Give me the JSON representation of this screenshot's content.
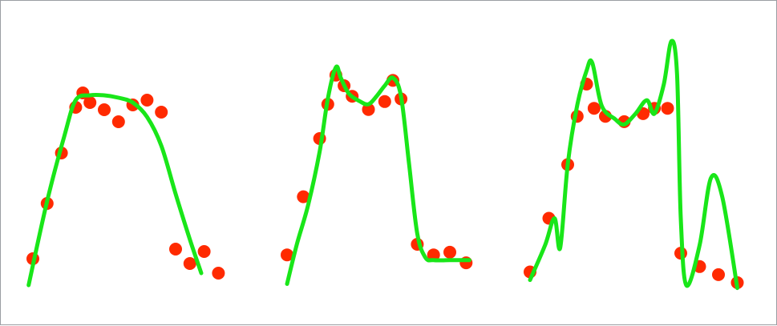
{
  "colors": {
    "points": "#ff2a00",
    "fit": "#19e619",
    "background": "#ffffff",
    "border": "#9a9ea3"
  },
  "chart_data": [
    {
      "type": "scatter",
      "panel": "underfit",
      "points": [
        [
          0,
          0.16
        ],
        [
          1,
          0.39
        ],
        [
          2,
          0.6
        ],
        [
          3,
          0.79
        ],
        [
          3.5,
          0.85
        ],
        [
          4,
          0.81
        ],
        [
          5,
          0.78
        ],
        [
          6,
          0.73
        ],
        [
          7,
          0.8
        ],
        [
          8,
          0.82
        ],
        [
          9,
          0.77
        ],
        [
          10,
          0.2
        ],
        [
          11,
          0.14
        ],
        [
          12,
          0.19
        ],
        [
          13,
          0.1
        ]
      ],
      "fit_curve": [
        [
          -0.3,
          0.05
        ],
        [
          1,
          0.4
        ],
        [
          2.2,
          0.67
        ],
        [
          3,
          0.82
        ],
        [
          4,
          0.84
        ],
        [
          5,
          0.84
        ],
        [
          6,
          0.83
        ],
        [
          7,
          0.81
        ],
        [
          8,
          0.75
        ],
        [
          9,
          0.63
        ],
        [
          10,
          0.43
        ],
        [
          11,
          0.24
        ],
        [
          11.8,
          0.1
        ]
      ]
    },
    {
      "type": "scatter",
      "panel": "good-fit",
      "points": [
        [
          0,
          0.16
        ],
        [
          1,
          0.38
        ],
        [
          2,
          0.6
        ],
        [
          2.5,
          0.73
        ],
        [
          3,
          0.84
        ],
        [
          3.5,
          0.8
        ],
        [
          4,
          0.76
        ],
        [
          5,
          0.71
        ],
        [
          6,
          0.74
        ],
        [
          6.5,
          0.82
        ],
        [
          7,
          0.75
        ],
        [
          8,
          0.2
        ],
        [
          9,
          0.16
        ],
        [
          10,
          0.17
        ],
        [
          11,
          0.13
        ]
      ],
      "fit_curve": [
        [
          0,
          0.05
        ],
        [
          0.6,
          0.2
        ],
        [
          1.3,
          0.35
        ],
        [
          2,
          0.55
        ],
        [
          2.5,
          0.75
        ],
        [
          3,
          0.87
        ],
        [
          3.3,
          0.83
        ],
        [
          3.8,
          0.77
        ],
        [
          4.5,
          0.74
        ],
        [
          5,
          0.73
        ],
        [
          5.5,
          0.76
        ],
        [
          6,
          0.8
        ],
        [
          6.5,
          0.83
        ],
        [
          7,
          0.76
        ],
        [
          7.5,
          0.5
        ],
        [
          8,
          0.24
        ],
        [
          8.5,
          0.15
        ],
        [
          9,
          0.14
        ],
        [
          10,
          0.14
        ],
        [
          11.2,
          0.14
        ]
      ]
    },
    {
      "type": "scatter",
      "panel": "overfit",
      "points": [
        [
          0,
          0.1
        ],
        [
          1,
          0.3
        ],
        [
          2,
          0.5
        ],
        [
          2.5,
          0.68
        ],
        [
          3,
          0.8
        ],
        [
          3.4,
          0.71
        ],
        [
          4,
          0.68
        ],
        [
          5,
          0.66
        ],
        [
          6,
          0.69
        ],
        [
          6.6,
          0.71
        ],
        [
          7.3,
          0.71
        ],
        [
          8,
          0.17
        ],
        [
          9,
          0.12
        ],
        [
          10,
          0.09
        ],
        [
          11,
          0.06
        ]
      ],
      "fit_curve": [
        [
          0,
          0.07
        ],
        [
          0.8,
          0.2
        ],
        [
          1.3,
          0.3
        ],
        [
          1.6,
          0.19
        ],
        [
          2,
          0.5
        ],
        [
          2.5,
          0.72
        ],
        [
          3,
          0.85
        ],
        [
          3.3,
          0.88
        ],
        [
          3.8,
          0.72
        ],
        [
          4.5,
          0.67
        ],
        [
          5,
          0.65
        ],
        [
          5.6,
          0.69
        ],
        [
          6.2,
          0.74
        ],
        [
          6.6,
          0.69
        ],
        [
          7.1,
          0.8
        ],
        [
          7.5,
          0.96
        ],
        [
          7.8,
          0.84
        ],
        [
          8,
          0.3
        ],
        [
          8.3,
          0.05
        ],
        [
          9,
          0.2
        ],
        [
          9.6,
          0.45
        ],
        [
          10.2,
          0.38
        ],
        [
          11,
          0.04
        ]
      ]
    }
  ]
}
